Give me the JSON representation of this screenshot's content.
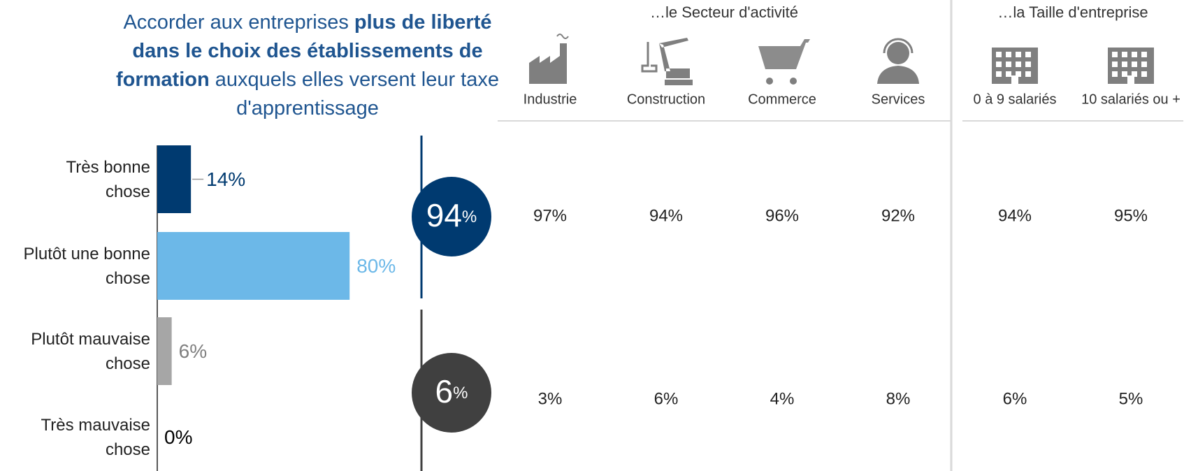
{
  "chart_data": {
    "type": "bar",
    "title": [
      {
        "text": "Accorder aux entreprises ",
        "bold": false
      },
      {
        "text": "plus de liberté dans le choix des établissements de formation",
        "bold": true
      },
      {
        "text": " auxquels elles versent leur taxe d'apprentissage",
        "bold": false
      }
    ],
    "categories": [
      "Très bonne chose",
      "Plutôt une bonne chose",
      "Plutôt mauvaise chose",
      "Très mauvaise chose"
    ],
    "values": [
      14,
      80,
      6,
      0
    ],
    "value_labels": [
      "14%",
      "80%",
      "6%",
      "0%"
    ],
    "colors": [
      "#003a70",
      "#6cb8e8",
      "#a6a6a6",
      "#a6a6a6"
    ],
    "label_colors": [
      "#003a70",
      "#6cb8e8",
      "#7f7f7f",
      "#000000"
    ],
    "totals": {
      "values": [
        94,
        6
      ],
      "value_labels": [
        "94%",
        "6%"
      ],
      "colors": [
        "#003a70",
        "#404040"
      ]
    },
    "breakdown": [
      {
        "title": "…le Secteur d'activité",
        "columns": [
          {
            "name": "Industrie",
            "icon": "factory",
            "values": [
              97,
              3
            ],
            "value_labels": [
              "97%",
              "3%"
            ]
          },
          {
            "name": "Construction",
            "icon": "crane",
            "values": [
              94,
              6
            ],
            "value_labels": [
              "94%",
              "6%"
            ]
          },
          {
            "name": "Commerce",
            "icon": "cart",
            "values": [
              96,
              4
            ],
            "value_labels": [
              "96%",
              "4%"
            ]
          },
          {
            "name": "Services",
            "icon": "person",
            "values": [
              92,
              8
            ],
            "value_labels": [
              "92%",
              "8%"
            ]
          }
        ]
      },
      {
        "title": "…la Taille d'entreprise",
        "columns": [
          {
            "name": "0 à 9 salariés",
            "icon": "building",
            "values": [
              94,
              6
            ],
            "value_labels": [
              "94%",
              "6%"
            ]
          },
          {
            "name": "10 salariés ou +",
            "icon": "building",
            "values": [
              95,
              5
            ],
            "value_labels": [
              "95%",
              "5%"
            ]
          }
        ]
      }
    ]
  }
}
